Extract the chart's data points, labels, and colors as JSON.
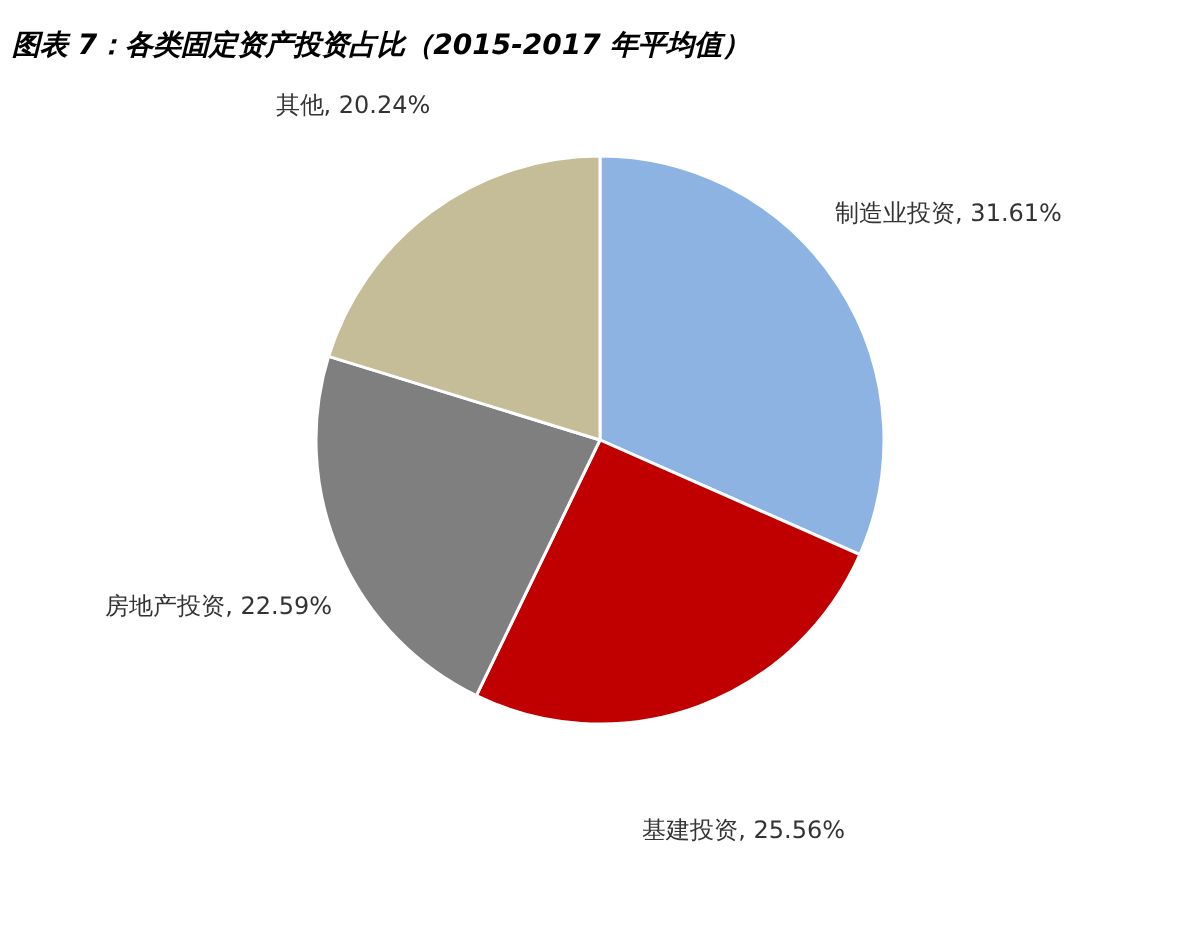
{
  "chart_data": {
    "type": "pie",
    "title": "图表 7：各类固定资产投资占比（2015-2017 年平均值）",
    "categories": [
      "制造业投资",
      "基建投资",
      "房地产投资",
      "其他"
    ],
    "values": [
      31.61,
      25.56,
      22.59,
      20.24
    ],
    "value_labels": [
      "31.61%",
      "25.56%",
      "22.59%",
      "20.24%"
    ],
    "colors": [
      "#8db3e2",
      "#c00000",
      "#7f7f7f",
      "#c4bd97"
    ]
  }
}
